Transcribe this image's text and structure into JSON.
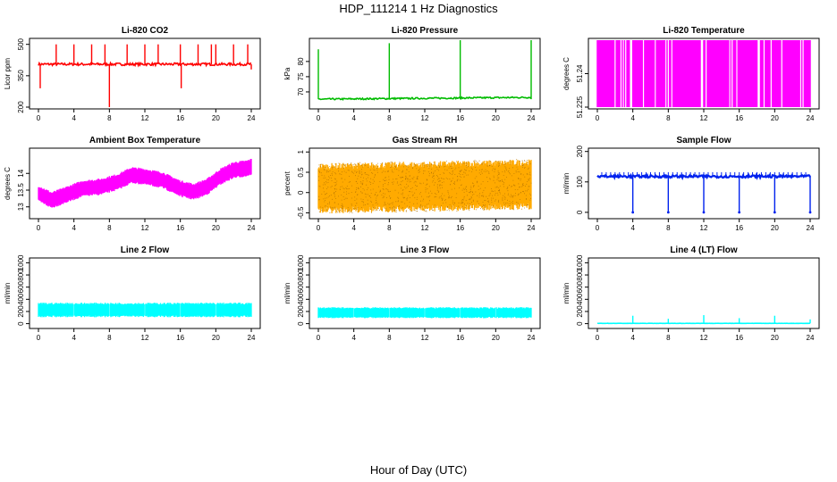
{
  "figure": {
    "title": "HDP_111214  1 Hz Diagnostics",
    "xlabel": "Hour of Day (UTC)"
  },
  "chart_data": [
    {
      "id": "co2",
      "type": "line",
      "title": "Li-820 CO2",
      "ylabel": "Licor ppm",
      "color": "#ff0000",
      "xlim": [
        0,
        24
      ],
      "ylim": [
        200,
        520
      ],
      "xticks": [
        0,
        4,
        8,
        12,
        16,
        20,
        24
      ],
      "yticks": [
        200,
        350,
        500
      ],
      "baseline": 405,
      "noise": 6,
      "x": [
        0,
        0.2,
        0.3,
        2.0,
        3.0,
        4.0,
        6.0,
        7.5,
        8.0,
        8.1,
        10.0,
        12.0,
        13.5,
        14.0,
        16.0,
        16.1,
        18.0,
        19.5,
        20.0,
        22.0,
        23.6,
        24.0
      ],
      "y": [
        405,
        290,
        405,
        500,
        405,
        500,
        500,
        500,
        200,
        405,
        500,
        500,
        500,
        405,
        500,
        290,
        500,
        500,
        500,
        500,
        500,
        380
      ],
      "mode": "spikes"
    },
    {
      "id": "pressure",
      "type": "line",
      "title": "Li-820 Pressure",
      "ylabel": "kPa",
      "color": "#00bb00",
      "xlim": [
        0,
        24
      ],
      "ylim": [
        65,
        87
      ],
      "xticks": [
        0,
        4,
        8,
        12,
        16,
        20,
        24
      ],
      "yticks": [
        70,
        75,
        80
      ],
      "baseline": 67.6,
      "drift": 0.6,
      "noise": 0.25,
      "x": [
        0,
        8,
        16,
        24
      ],
      "y": [
        84,
        86,
        87,
        87
      ],
      "mode": "spikes"
    },
    {
      "id": "licor-temp",
      "type": "bar",
      "title": "Li-820 Temperature",
      "ylabel": "degrees C",
      "color": "#ff00ff",
      "xlim": [
        0,
        24
      ],
      "ylim": [
        51.225,
        51.255
      ],
      "xticks": [
        0,
        4,
        8,
        12,
        16,
        20,
        24
      ],
      "yticks": [
        51.225,
        51.24
      ],
      "mode": "stripes",
      "fill_fraction": 0.85
    },
    {
      "id": "ambient-temp",
      "type": "line",
      "title": "Ambient Box Temperature",
      "ylabel": "degrees C",
      "color": "#ff00ff",
      "xlim": [
        0,
        24
      ],
      "ylim": [
        12.7,
        14.7
      ],
      "xticks": [
        0,
        4,
        8,
        12,
        16,
        20,
        24
      ],
      "yticks": [
        13.0,
        13.5,
        14.0
      ],
      "mode": "band",
      "x": [
        0,
        1.5,
        3,
        5,
        7,
        9,
        10.5,
        12,
        14,
        16,
        17.5,
        19,
        20.5,
        22,
        23.5,
        24
      ],
      "y": [
        13.4,
        13.2,
        13.35,
        13.55,
        13.6,
        13.75,
        13.95,
        13.9,
        13.8,
        13.55,
        13.45,
        13.6,
        13.9,
        14.1,
        14.15,
        14.2
      ],
      "band_halfwidth": 0.25
    },
    {
      "id": "gas-rh",
      "type": "line",
      "title": "Gas Stream RH",
      "ylabel": "percent",
      "color": "#ffaa00",
      "xlim": [
        0,
        24
      ],
      "ylim": [
        -0.6,
        1.05
      ],
      "xticks": [
        0,
        4,
        8,
        12,
        16,
        20,
        24
      ],
      "yticks": [
        -0.5,
        0.0,
        0.5,
        1.0
      ],
      "mode": "band",
      "x": [
        0,
        24
      ],
      "y": [
        0.1,
        0.2
      ],
      "band_halfwidth": 0.62
    },
    {
      "id": "sample-flow",
      "type": "line",
      "title": "Sample Flow",
      "ylabel": "ml/min",
      "color": "#0022ee",
      "xlim": [
        0,
        24
      ],
      "ylim": [
        -15,
        205
      ],
      "xticks": [
        0,
        4,
        8,
        12,
        16,
        20,
        24
      ],
      "yticks": [
        0,
        100,
        200
      ],
      "baseline": 118,
      "noise": 4,
      "x": [
        4,
        8,
        12,
        16,
        20,
        24
      ],
      "y": [
        0,
        0,
        0,
        0,
        0,
        0
      ],
      "mode": "dips"
    },
    {
      "id": "line2-flow",
      "type": "line",
      "title": "Line 2 Flow",
      "ylabel": "ml/min",
      "color": "#00ffff",
      "xlim": [
        0,
        24
      ],
      "ylim": [
        -50,
        1050
      ],
      "xticks": [
        0,
        4,
        8,
        12,
        16,
        20,
        24
      ],
      "yticks": [
        0,
        200,
        400,
        600,
        800,
        1000
      ],
      "mode": "band",
      "x": [
        0,
        24
      ],
      "y": [
        225,
        225
      ],
      "band_halfwidth": 120,
      "gaps": [
        4,
        8,
        12,
        16,
        20
      ]
    },
    {
      "id": "line3-flow",
      "type": "line",
      "title": "Line 3 Flow",
      "ylabel": "ml/min",
      "color": "#00ffff",
      "xlim": [
        0,
        24
      ],
      "ylim": [
        -50,
        1050
      ],
      "xticks": [
        0,
        4,
        8,
        12,
        16,
        20,
        24
      ],
      "yticks": [
        0,
        200,
        400,
        600,
        800,
        1000
      ],
      "mode": "band",
      "x": [
        0,
        24
      ],
      "y": [
        180,
        180
      ],
      "band_halfwidth": 90,
      "gaps": [
        4,
        8,
        12,
        16,
        20
      ]
    },
    {
      "id": "line4-flow",
      "type": "line",
      "title": "Line 4 (LT) Flow",
      "ylabel": "ml/min",
      "color": "#00ffff",
      "xlim": [
        0,
        24
      ],
      "ylim": [
        -50,
        1050
      ],
      "xticks": [
        0,
        4,
        8,
        12,
        16,
        20,
        24
      ],
      "yticks": [
        0,
        200,
        400,
        600,
        800,
        1000
      ],
      "baseline": 5,
      "noise": 2,
      "x": [
        4,
        8,
        12,
        16,
        20,
        24
      ],
      "y": [
        130,
        80,
        140,
        90,
        130,
        70
      ],
      "mode": "spikes"
    }
  ]
}
